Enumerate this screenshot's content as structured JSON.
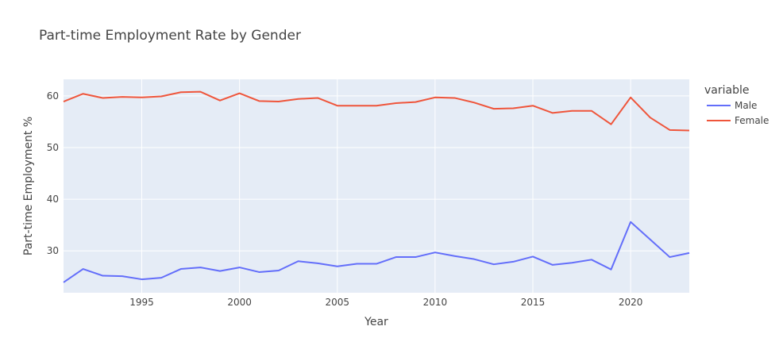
{
  "chart_data": {
    "type": "line",
    "title": "Part-time Employment Rate by Gender",
    "xlabel": "Year",
    "ylabel": "Part-time Employment %",
    "xlim": [
      1991,
      2023
    ],
    "ylim": [
      21.9,
      63.2
    ],
    "x_ticks": [
      1995,
      2000,
      2005,
      2010,
      2015,
      2020
    ],
    "y_ticks": [
      30,
      40,
      50,
      60
    ],
    "grid": true,
    "legend": {
      "title": "variable",
      "position": "right"
    },
    "x": [
      1991,
      1992,
      1993,
      1994,
      1995,
      1996,
      1997,
      1998,
      1999,
      2000,
      2001,
      2002,
      2003,
      2004,
      2005,
      2006,
      2007,
      2008,
      2009,
      2010,
      2011,
      2012,
      2013,
      2014,
      2015,
      2016,
      2017,
      2018,
      2019,
      2020,
      2021,
      2022,
      2023
    ],
    "series": [
      {
        "name": "Male",
        "color": "#636efa",
        "values": [
          23.9,
          26.5,
          25.2,
          25.1,
          24.5,
          24.8,
          26.5,
          26.8,
          26.1,
          26.8,
          25.9,
          26.2,
          28.0,
          27.6,
          27.0,
          27.5,
          27.5,
          28.8,
          28.8,
          29.7,
          29.0,
          28.4,
          27.4,
          27.9,
          28.9,
          27.3,
          27.7,
          28.3,
          26.4,
          35.6,
          32.2,
          28.8,
          29.6
        ]
      },
      {
        "name": "Female",
        "color": "#ef553b",
        "values": [
          58.9,
          60.4,
          59.6,
          59.8,
          59.7,
          59.9,
          60.7,
          60.8,
          59.1,
          60.5,
          59.0,
          58.9,
          59.4,
          59.6,
          58.1,
          58.1,
          58.1,
          58.6,
          58.8,
          59.7,
          59.6,
          58.7,
          57.5,
          57.6,
          58.1,
          56.7,
          57.1,
          57.1,
          54.5,
          59.7,
          55.8,
          53.4,
          53.3
        ]
      }
    ]
  }
}
